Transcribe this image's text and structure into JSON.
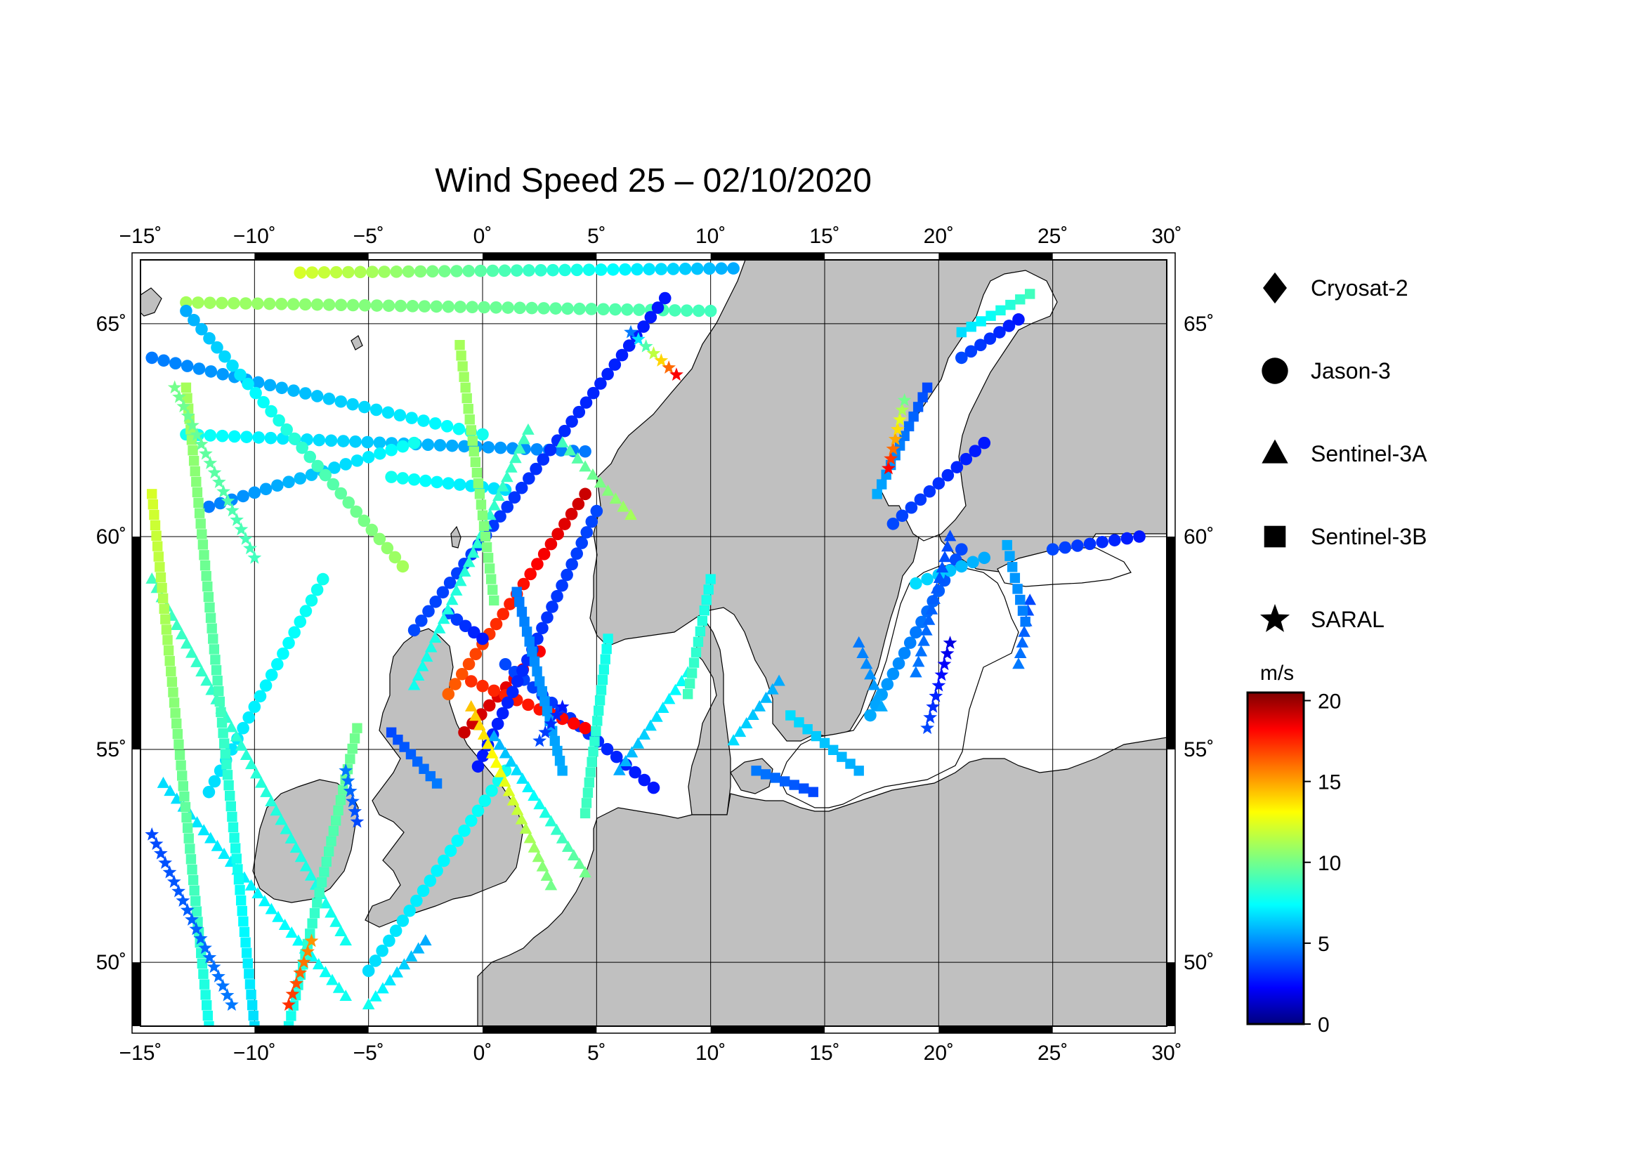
{
  "title": "Wind Speed 25 – 02/10/2020",
  "map": {
    "lon_range": [
      -15,
      30
    ],
    "lat_range": [
      48.5,
      66.5
    ],
    "lon_ticks": [
      -15,
      -10,
      -5,
      0,
      5,
      10,
      15,
      20,
      25,
      30
    ],
    "lon_tick_labels": [
      "−15˚",
      "−10˚",
      "−5˚",
      "0˚",
      "5˚",
      "10˚",
      "15˚",
      "20˚",
      "25˚",
      "30˚"
    ],
    "lat_ticks": [
      50,
      55,
      60,
      65
    ],
    "lat_tick_labels": [
      "50˚",
      "55˚",
      "60˚",
      "65˚"
    ],
    "ocean_color": "#ffffff",
    "land_color": "#c0c0c0",
    "grid": true
  },
  "legend": {
    "items": [
      {
        "label": "Cryosat-2",
        "marker": "diamond"
      },
      {
        "label": "Jason-3",
        "marker": "circle"
      },
      {
        "label": "Sentinel-3A",
        "marker": "triangle"
      },
      {
        "label": "Sentinel-3B",
        "marker": "square"
      },
      {
        "label": "SARAL",
        "marker": "star"
      }
    ]
  },
  "colorbar": {
    "unit": "m/s",
    "range": [
      0,
      20.5
    ],
    "ticks": [
      0,
      5,
      10,
      15,
      20
    ],
    "tick_labels": [
      "0",
      "5",
      "10",
      "15",
      "20"
    ],
    "colormap": "jet"
  },
  "chart_data": {
    "type": "scatter",
    "xlabel": "",
    "ylabel": "",
    "xlim": [
      -15,
      30
    ],
    "ylim": [
      48.5,
      66.5
    ],
    "tracks": [
      {
        "satellite": "Jason-3",
        "marker": "circle",
        "from": [
          -8,
          66.2
        ],
        "to": [
          11,
          66.3
        ],
        "wind": [
          12,
          6
        ]
      },
      {
        "satellite": "Jason-3",
        "marker": "circle",
        "from": [
          -13,
          65.5
        ],
        "to": [
          10,
          65.3
        ],
        "wind": [
          11,
          9
        ]
      },
      {
        "satellite": "Jason-3",
        "marker": "circle",
        "from": [
          -14.5,
          64.2
        ],
        "to": [
          0,
          62.4
        ],
        "wind": [
          5,
          8
        ]
      },
      {
        "satellite": "Jason-3",
        "marker": "circle",
        "from": [
          -13,
          62.4
        ],
        "to": [
          4.5,
          62.0
        ],
        "wind": [
          8,
          5
        ]
      },
      {
        "satellite": "Jason-3",
        "marker": "circle",
        "from": [
          -12,
          60.7
        ],
        "to": [
          -3,
          62.2
        ],
        "wind": [
          5,
          8
        ]
      },
      {
        "satellite": "Jason-3",
        "marker": "circle",
        "from": [
          -4,
          61.4
        ],
        "to": [
          1,
          61.1
        ],
        "wind": [
          8,
          7
        ]
      },
      {
        "satellite": "Jason-3",
        "marker": "circle",
        "from": [
          -3.5,
          59.3
        ],
        "to": [
          -13,
          65.3
        ],
        "wind": [
          11,
          6
        ]
      },
      {
        "satellite": "Jason-3",
        "marker": "circle",
        "from": [
          -3,
          57.8
        ],
        "to": [
          8,
          65.6
        ],
        "wind": [
          4,
          3
        ]
      },
      {
        "satellite": "Jason-3",
        "marker": "circle",
        "from": [
          -1.5,
          56.3
        ],
        "to": [
          4.5,
          61.0
        ],
        "wind": [
          16,
          19
        ]
      },
      {
        "satellite": "Jason-3",
        "marker": "circle",
        "from": [
          -1.5,
          58.2
        ],
        "to": [
          0,
          57.6
        ],
        "wind": [
          4,
          3
        ]
      },
      {
        "satellite": "Jason-3",
        "marker": "circle",
        "from": [
          -0.8,
          55.4
        ],
        "to": [
          2.5,
          57.3
        ],
        "wind": [
          19,
          18
        ]
      },
      {
        "satellite": "Jason-3",
        "marker": "circle",
        "from": [
          1,
          57.0
        ],
        "to": [
          7.5,
          54.1
        ],
        "wind": [
          4,
          3
        ]
      },
      {
        "satellite": "Jason-3",
        "marker": "circle",
        "from": [
          -0.5,
          56.6
        ],
        "to": [
          4.5,
          55.5
        ],
        "wind": [
          17,
          18
        ]
      },
      {
        "satellite": "Jason-3",
        "marker": "circle",
        "from": [
          -0.2,
          54.6
        ],
        "to": [
          5,
          60.6
        ],
        "wind": [
          3,
          4
        ]
      },
      {
        "satellite": "Jason-3",
        "marker": "circle",
        "from": [
          -5,
          49.8
        ],
        "to": [
          1,
          54.5
        ],
        "wind": [
          7,
          8
        ]
      },
      {
        "satellite": "Jason-3",
        "marker": "circle",
        "from": [
          -12,
          54.0
        ],
        "to": [
          -7,
          59.0
        ],
        "wind": [
          7,
          8
        ]
      },
      {
        "satellite": "Jason-3",
        "marker": "circle",
        "from": [
          17,
          55.8
        ],
        "to": [
          21,
          59.7
        ],
        "wind": [
          6,
          4
        ]
      },
      {
        "satellite": "Jason-3",
        "marker": "circle",
        "from": [
          18,
          60.3
        ],
        "to": [
          22,
          62.2
        ],
        "wind": [
          4,
          3
        ]
      },
      {
        "satellite": "Jason-3",
        "marker": "circle",
        "from": [
          21,
          64.2
        ],
        "to": [
          23.5,
          65.1
        ],
        "wind": [
          4,
          3
        ]
      },
      {
        "satellite": "Jason-3",
        "marker": "circle",
        "from": [
          25,
          59.7
        ],
        "to": [
          28.8,
          60.0
        ],
        "wind": [
          4,
          3
        ]
      },
      {
        "satellite": "Jason-3",
        "marker": "circle",
        "from": [
          19,
          58.9
        ],
        "to": [
          22,
          59.5
        ],
        "wind": [
          7,
          6
        ]
      },
      {
        "satellite": "Sentinel-3A",
        "marker": "triangle",
        "from": [
          2,
          62.5
        ],
        "to": [
          -3,
          56.5
        ],
        "wind": [
          9,
          8
        ]
      },
      {
        "satellite": "Sentinel-3A",
        "marker": "triangle",
        "from": [
          0.5,
          55.3
        ],
        "to": [
          4.5,
          52.1
        ],
        "wind": [
          6,
          10
        ]
      },
      {
        "satellite": "Sentinel-3A",
        "marker": "triangle",
        "from": [
          3,
          51.8
        ],
        "to": [
          -0.5,
          56.0
        ],
        "wind": [
          10,
          14
        ]
      },
      {
        "satellite": "Sentinel-3A",
        "marker": "triangle",
        "from": [
          6,
          54.5
        ],
        "to": [
          9,
          56.8
        ],
        "wind": [
          6,
          8
        ]
      },
      {
        "satellite": "Sentinel-3A",
        "marker": "triangle",
        "from": [
          -14,
          54.2
        ],
        "to": [
          -6,
          49.2
        ],
        "wind": [
          7,
          8
        ]
      },
      {
        "satellite": "Sentinel-3A",
        "marker": "triangle",
        "from": [
          -14.5,
          59.0
        ],
        "to": [
          -6,
          50.5
        ],
        "wind": [
          9,
          8
        ]
      },
      {
        "satellite": "Sentinel-3A",
        "marker": "triangle",
        "from": [
          -5,
          49.0
        ],
        "to": [
          -2.5,
          50.5
        ],
        "wind": [
          8,
          6
        ]
      },
      {
        "satellite": "Sentinel-3A",
        "marker": "triangle",
        "from": [
          17.5,
          56.0
        ],
        "to": [
          16.5,
          57.5
        ],
        "wind": [
          6,
          5
        ]
      },
      {
        "satellite": "Sentinel-3A",
        "marker": "triangle",
        "from": [
          19,
          56.8
        ],
        "to": [
          20.5,
          60.0
        ],
        "wind": [
          5,
          4
        ]
      },
      {
        "satellite": "Sentinel-3A",
        "marker": "triangle",
        "from": [
          23.5,
          57.0
        ],
        "to": [
          24,
          58.5
        ],
        "wind": [
          5,
          4
        ]
      },
      {
        "satellite": "Sentinel-3A",
        "marker": "triangle",
        "from": [
          11,
          55.2
        ],
        "to": [
          13,
          56.6
        ],
        "wind": [
          7,
          6
        ]
      },
      {
        "satellite": "Sentinel-3A",
        "marker": "triangle",
        "from": [
          3.5,
          62.2
        ],
        "to": [
          6.5,
          60.5
        ],
        "wind": [
          9,
          11
        ]
      },
      {
        "satellite": "Sentinel-3B",
        "marker": "square",
        "from": [
          -12,
          48.5
        ],
        "to": [
          -14.5,
          61.0
        ],
        "wind": [
          8,
          12
        ]
      },
      {
        "satellite": "Sentinel-3B",
        "marker": "square",
        "from": [
          -10,
          48.5
        ],
        "to": [
          -13,
          63.5
        ],
        "wind": [
          7,
          11
        ]
      },
      {
        "satellite": "Sentinel-3B",
        "marker": "square",
        "from": [
          -8.5,
          48.5
        ],
        "to": [
          -5.5,
          55.5
        ],
        "wind": [
          8,
          10
        ]
      },
      {
        "satellite": "Sentinel-3B",
        "marker": "square",
        "from": [
          -4,
          55.4
        ],
        "to": [
          -2,
          54.2
        ],
        "wind": [
          4,
          5
        ]
      },
      {
        "satellite": "Sentinel-3B",
        "marker": "square",
        "from": [
          1.5,
          58.7
        ],
        "to": [
          3.5,
          54.5
        ],
        "wind": [
          5,
          6
        ]
      },
      {
        "satellite": "Sentinel-3B",
        "marker": "square",
        "from": [
          0.5,
          58.5
        ],
        "to": [
          -1,
          64.5
        ],
        "wind": [
          10,
          11
        ]
      },
      {
        "satellite": "Sentinel-3B",
        "marker": "square",
        "from": [
          5.5,
          57.6
        ],
        "to": [
          4.5,
          53.5
        ],
        "wind": [
          8,
          9
        ]
      },
      {
        "satellite": "Sentinel-3B",
        "marker": "square",
        "from": [
          9,
          56.3
        ],
        "to": [
          10,
          59.0
        ],
        "wind": [
          9,
          8
        ]
      },
      {
        "satellite": "Sentinel-3B",
        "marker": "square",
        "from": [
          13.5,
          55.8
        ],
        "to": [
          16.5,
          54.5
        ],
        "wind": [
          7,
          6
        ]
      },
      {
        "satellite": "Sentinel-3B",
        "marker": "square",
        "from": [
          17.3,
          61.0
        ],
        "to": [
          19.5,
          63.5
        ],
        "wind": [
          6,
          4
        ]
      },
      {
        "satellite": "Sentinel-3B",
        "marker": "square",
        "from": [
          21,
          64.8
        ],
        "to": [
          24,
          65.7
        ],
        "wind": [
          7,
          9
        ]
      },
      {
        "satellite": "Sentinel-3B",
        "marker": "square",
        "from": [
          23,
          59.8
        ],
        "to": [
          23.8,
          58.0
        ],
        "wind": [
          6,
          5
        ]
      },
      {
        "satellite": "Sentinel-3B",
        "marker": "square",
        "from": [
          12,
          54.5
        ],
        "to": [
          14.5,
          54.0
        ],
        "wind": [
          5,
          4
        ]
      },
      {
        "satellite": "SARAL",
        "marker": "star",
        "from": [
          6.5,
          64.8
        ],
        "to": [
          8.5,
          63.8
        ],
        "wind": [
          5,
          18
        ]
      },
      {
        "satellite": "SARAL",
        "marker": "star",
        "from": [
          -10,
          59.5
        ],
        "to": [
          -13.5,
          63.5
        ],
        "wind": [
          9,
          10
        ]
      },
      {
        "satellite": "SARAL",
        "marker": "star",
        "from": [
          -14.5,
          53.0
        ],
        "to": [
          -11,
          49.0
        ],
        "wind": [
          4,
          5
        ]
      },
      {
        "satellite": "SARAL",
        "marker": "star",
        "from": [
          -8.5,
          49.0
        ],
        "to": [
          -7.5,
          50.5
        ],
        "wind": [
          17,
          15
        ]
      },
      {
        "satellite": "SARAL",
        "marker": "star",
        "from": [
          2.5,
          55.2
        ],
        "to": [
          3.5,
          56.0
        ],
        "wind": [
          4,
          3
        ]
      },
      {
        "satellite": "SARAL",
        "marker": "star",
        "from": [
          19.5,
          55.5
        ],
        "to": [
          20.5,
          57.5
        ],
        "wind": [
          4,
          2
        ]
      },
      {
        "satellite": "SARAL",
        "marker": "star",
        "from": [
          17.8,
          61.6
        ],
        "to": [
          18.5,
          63.2
        ],
        "wind": [
          18,
          10
        ]
      },
      {
        "satellite": "SARAL",
        "marker": "star",
        "from": [
          -6,
          54.5
        ],
        "to": [
          -5.5,
          53.3
        ],
        "wind": [
          5,
          4
        ]
      }
    ]
  }
}
